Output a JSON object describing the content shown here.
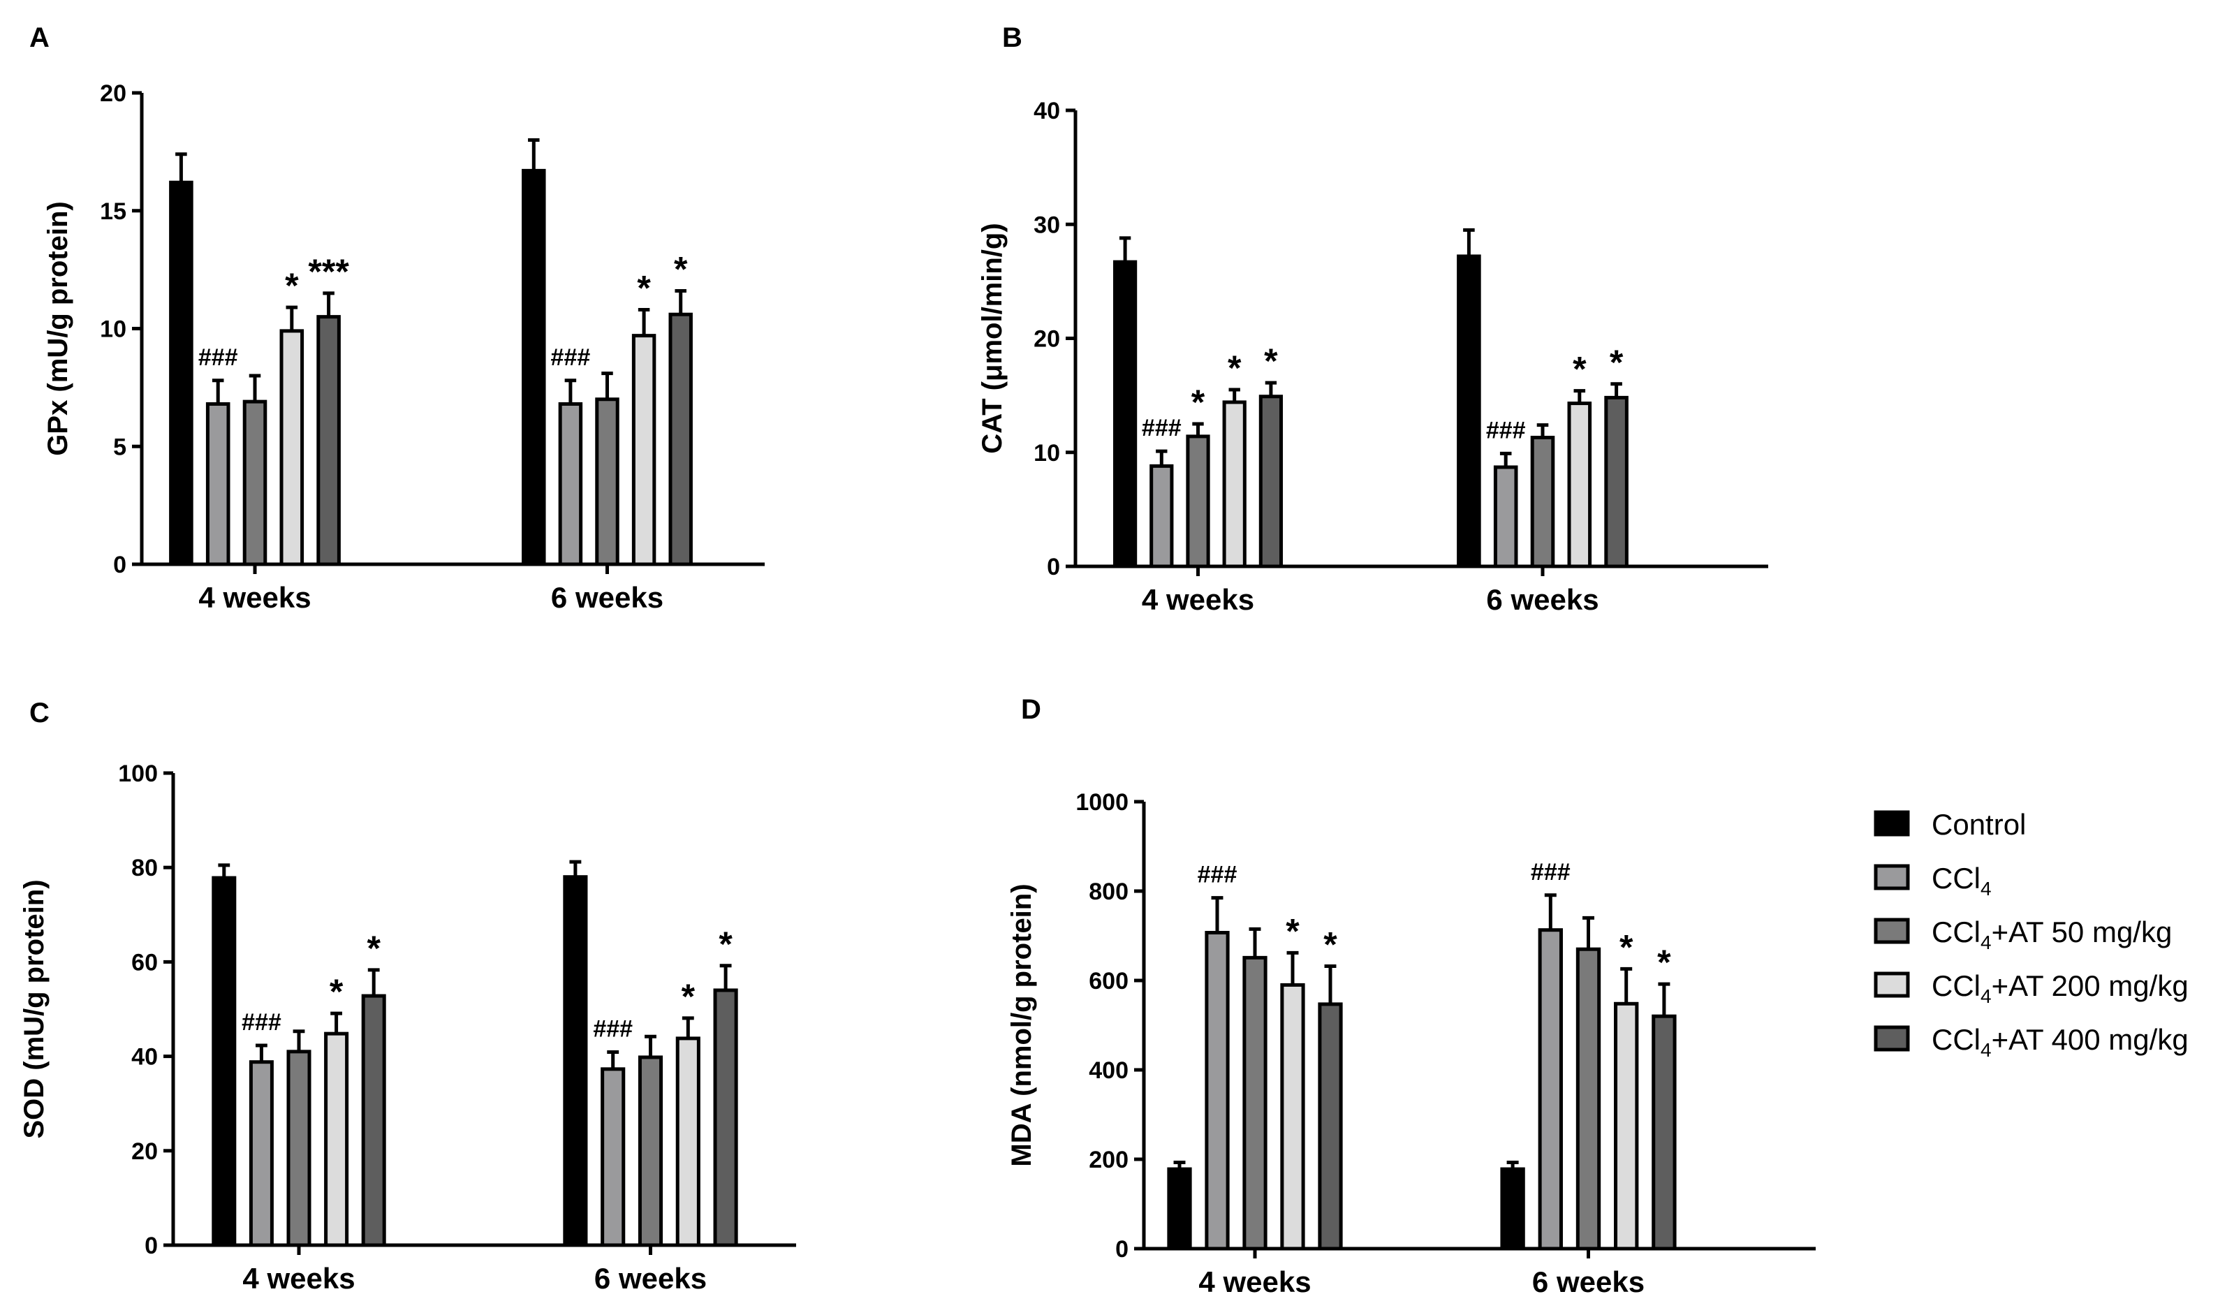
{
  "colors": {
    "Control": "#000000",
    "CCl4": "#9a9a9c",
    "CCl4+AT 50 mg/kg": "#7a7a7a",
    "CCl4+AT 200 mg/kg": "#dcdcdc",
    "CCl4+AT 400 mg/kg": "#5e5e5e"
  },
  "legend": {
    "items": [
      {
        "key": "Control",
        "base": "Control",
        "sub": "",
        "rest": ""
      },
      {
        "key": "CCl4",
        "base": "CCl",
        "sub": "4",
        "rest": ""
      },
      {
        "key": "CCl4+AT 50 mg/kg",
        "base": "CCl",
        "sub": "4",
        "rest": "+AT 50 mg/kg"
      },
      {
        "key": "CCl4+AT 200 mg/kg",
        "base": "CCl",
        "sub": "4",
        "rest": "+AT 200 mg/kg"
      },
      {
        "key": "CCl4+AT 400 mg/kg",
        "base": "CCl",
        "sub": "4",
        "rest": "+AT 400 mg/kg"
      }
    ]
  },
  "chart_data": [
    {
      "panel": "A",
      "type": "bar",
      "ylabel": "GPx (mU/g protein)",
      "ylim": [
        0,
        20
      ],
      "yticks": [
        0,
        5,
        10,
        15,
        20
      ],
      "categories": [
        "4 weeks",
        "6 weeks"
      ],
      "series": [
        {
          "name": "Control",
          "values": [
            16.2,
            16.7
          ],
          "errors": [
            1.2,
            1.3
          ],
          "annotations": [
            "",
            ""
          ]
        },
        {
          "name": "CCl4",
          "values": [
            6.8,
            6.8
          ],
          "errors": [
            1.0,
            1.0
          ],
          "annotations": [
            "###",
            "###"
          ]
        },
        {
          "name": "CCl4+AT 50 mg/kg",
          "values": [
            6.9,
            7.0
          ],
          "errors": [
            1.1,
            1.1
          ],
          "annotations": [
            "",
            ""
          ]
        },
        {
          "name": "CCl4+AT 200 mg/kg",
          "values": [
            9.9,
            9.7
          ],
          "errors": [
            1.0,
            1.1
          ],
          "annotations": [
            "*",
            "*"
          ]
        },
        {
          "name": "CCl4+AT 400 mg/kg",
          "values": [
            10.5,
            10.6
          ],
          "errors": [
            1.0,
            1.0
          ],
          "annotations": [
            "***",
            "*"
          ]
        }
      ]
    },
    {
      "panel": "B",
      "type": "bar",
      "ylabel": "CAT (μmol/min/g)",
      "ylim": [
        0,
        40
      ],
      "yticks": [
        0,
        10,
        20,
        30,
        40
      ],
      "categories": [
        "4 weeks",
        "6 weeks"
      ],
      "series": [
        {
          "name": "Control",
          "values": [
            26.7,
            27.2
          ],
          "errors": [
            2.1,
            2.3
          ],
          "annotations": [
            "",
            ""
          ]
        },
        {
          "name": "CCl4",
          "values": [
            8.8,
            8.7
          ],
          "errors": [
            1.3,
            1.2
          ],
          "annotations": [
            "###",
            "###"
          ]
        },
        {
          "name": "CCl4+AT 50 mg/kg",
          "values": [
            11.4,
            11.3
          ],
          "errors": [
            1.1,
            1.1
          ],
          "annotations": [
            "*",
            ""
          ]
        },
        {
          "name": "CCl4+AT 200 mg/kg",
          "values": [
            14.4,
            14.3
          ],
          "errors": [
            1.1,
            1.1
          ],
          "annotations": [
            "*",
            "*"
          ]
        },
        {
          "name": "CCl4+AT 400 mg/kg",
          "values": [
            14.9,
            14.8
          ],
          "errors": [
            1.2,
            1.2
          ],
          "annotations": [
            "*",
            "*"
          ]
        }
      ]
    },
    {
      "panel": "C",
      "type": "bar",
      "ylabel": "SOD (mU/g protein)",
      "ylim": [
        0,
        100
      ],
      "yticks": [
        0,
        20,
        40,
        60,
        80,
        100
      ],
      "categories": [
        "4 weeks",
        "6 weeks"
      ],
      "series": [
        {
          "name": "Control",
          "values": [
            77.8,
            78.0
          ],
          "errors": [
            2.7,
            3.2
          ],
          "annotations": [
            "",
            ""
          ]
        },
        {
          "name": "CCl4",
          "values": [
            38.8,
            37.3
          ],
          "errors": [
            3.5,
            3.6
          ],
          "annotations": [
            "###",
            "###"
          ]
        },
        {
          "name": "CCl4+AT 50 mg/kg",
          "values": [
            41.0,
            39.8
          ],
          "errors": [
            4.3,
            4.4
          ],
          "annotations": [
            "",
            ""
          ]
        },
        {
          "name": "CCl4+AT 200 mg/kg",
          "values": [
            44.8,
            43.8
          ],
          "errors": [
            4.3,
            4.3
          ],
          "annotations": [
            "*",
            "*"
          ]
        },
        {
          "name": "CCl4+AT 400 mg/kg",
          "values": [
            52.8,
            54.0
          ],
          "errors": [
            5.5,
            5.2
          ],
          "annotations": [
            "*",
            "*"
          ]
        }
      ]
    },
    {
      "panel": "D",
      "type": "bar",
      "ylabel": "MDA (nmol/g protein)",
      "ylim": [
        0,
        1000
      ],
      "yticks": [
        0,
        200,
        400,
        600,
        800,
        1000
      ],
      "categories": [
        "4 weeks",
        "6 weeks"
      ],
      "series": [
        {
          "name": "Control",
          "values": [
            178,
            178
          ],
          "errors": [
            15,
            15
          ],
          "annotations": [
            "",
            ""
          ]
        },
        {
          "name": "CCl4",
          "values": [
            707,
            713
          ],
          "errors": [
            78,
            78
          ],
          "annotations": [
            "###",
            "###"
          ]
        },
        {
          "name": "CCl4+AT 50 mg/kg",
          "values": [
            651,
            670
          ],
          "errors": [
            64,
            70
          ],
          "annotations": [
            "",
            ""
          ]
        },
        {
          "name": "CCl4+AT 200 mg/kg",
          "values": [
            590,
            548
          ],
          "errors": [
            72,
            78
          ],
          "annotations": [
            "*",
            "*"
          ]
        },
        {
          "name": "CCl4+AT 400 mg/kg",
          "values": [
            547,
            520
          ],
          "errors": [
            85,
            72
          ],
          "annotations": [
            "*",
            "*"
          ]
        }
      ]
    }
  ]
}
